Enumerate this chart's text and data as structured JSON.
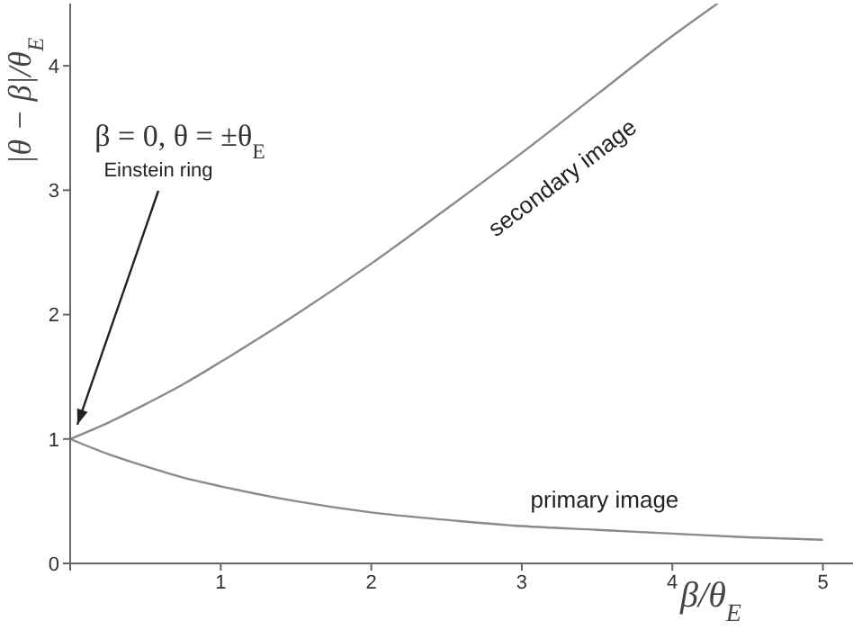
{
  "chart_data": {
    "type": "line",
    "xlabel": "β/θ$_{E}$",
    "ylabel": "|θ − β|/θ$_{E}$",
    "xlim": [
      0,
      5.2
    ],
    "ylim": [
      0,
      4.5
    ],
    "xticks": [
      {
        "value": 0,
        "label": null
      },
      1,
      2,
      3,
      4,
      5
    ],
    "yticks": [
      0,
      1,
      2,
      3,
      4
    ],
    "marker": "none",
    "line_style": "solid",
    "series": [
      {
        "name": "secondary image",
        "color": "#8a8a8a",
        "x": [
          0,
          0.25,
          0.5,
          0.75,
          1,
          1.5,
          2,
          2.5,
          3,
          3.5,
          4,
          4.3
        ],
        "values": [
          1,
          1.13,
          1.28,
          1.44,
          1.62,
          2.0,
          2.41,
          2.85,
          3.3,
          3.77,
          4.24,
          4.5
        ]
      },
      {
        "name": "primary image",
        "color": "#8a8a8a",
        "x": [
          0,
          0.25,
          0.5,
          0.75,
          1,
          1.5,
          2,
          2.5,
          3,
          3.5,
          4,
          4.5,
          5
        ],
        "values": [
          1,
          0.88,
          0.78,
          0.69,
          0.62,
          0.5,
          0.41,
          0.35,
          0.3,
          0.27,
          0.24,
          0.21,
          0.19
        ]
      }
    ],
    "annotations": [
      "β = 0, θ = ±θ$_{E}$",
      {
        "text": "Einstein ring",
        "x": 0,
        "y": 1
      }
    ]
  }
}
